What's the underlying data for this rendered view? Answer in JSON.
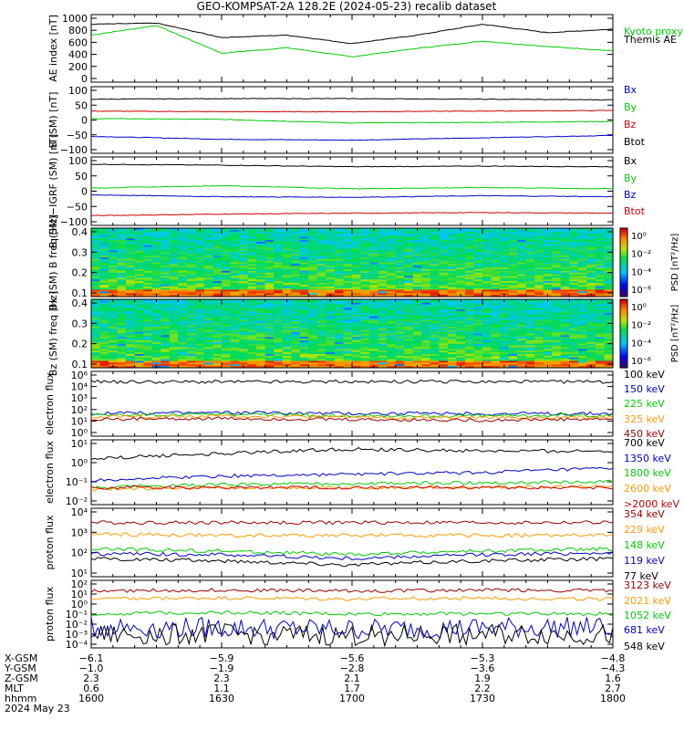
{
  "title": "GEO-KOMPSAT-2A 128.2E (2024-05-23) recalib dataset",
  "colors": {
    "black": "#000000",
    "red": "#cc0000",
    "green": "#00cc00",
    "blue": "#0000cc",
    "orange": "#ff9900",
    "darkred": "#990000"
  },
  "chart_data": [
    {
      "type": "line",
      "ylabel": "AE index [nT]",
      "ylim": [
        0,
        1000
      ],
      "yticks": [
        "1000",
        "800",
        "600",
        "400",
        "200",
        "0"
      ],
      "series": [
        {
          "name": "Kyoto proxy AE",
          "color": "#00cc00",
          "x": [
            "16:00",
            "16:15",
            "16:30",
            "16:45",
            "17:00",
            "17:15",
            "17:30",
            "17:45",
            "18:00"
          ],
          "values": [
            720,
            880,
            420,
            510,
            360,
            500,
            620,
            530,
            460
          ]
        },
        {
          "name": "Themis AE",
          "color": "#000000",
          "x": [
            "16:00",
            "16:15",
            "16:30",
            "16:45",
            "17:00",
            "17:15",
            "17:30",
            "17:45",
            "18:00"
          ],
          "values": [
            900,
            920,
            680,
            720,
            580,
            720,
            900,
            760,
            820
          ]
        }
      ]
    },
    {
      "type": "line",
      "ylabel": "B (SM) [nT]",
      "ylim": [
        -100,
        100
      ],
      "yticks": [
        "100",
        "50",
        "0",
        "−50",
        "−100"
      ],
      "series": [
        {
          "name": "Bx",
          "color": "#0000cc",
          "x": [
            "16:00",
            "16:30",
            "17:00",
            "17:30",
            "18:00"
          ],
          "values": [
            -55,
            -65,
            -68,
            -60,
            -52
          ]
        },
        {
          "name": "By",
          "color": "#00cc00",
          "x": [
            "16:00",
            "16:30",
            "17:00",
            "17:30",
            "18:00"
          ],
          "values": [
            5,
            2,
            -10,
            -8,
            -5
          ]
        },
        {
          "name": "Bz",
          "color": "#cc0000",
          "x": [
            "16:00",
            "16:30",
            "17:00",
            "17:30",
            "18:00"
          ],
          "values": [
            30,
            28,
            28,
            30,
            32
          ]
        },
        {
          "name": "Btot",
          "color": "#000000",
          "x": [
            "16:00",
            "16:30",
            "17:00",
            "17:30",
            "18:00"
          ],
          "values": [
            70,
            72,
            72,
            70,
            68
          ]
        }
      ]
    },
    {
      "type": "line",
      "ylabel": "B (SM)−IGRF (SM) [nT]",
      "ylim": [
        -100,
        100
      ],
      "yticks": [
        "100",
        "50",
        "0",
        "−50",
        "−100"
      ],
      "series": [
        {
          "name": "Bx",
          "color": "#000000",
          "x": [
            "16:00",
            "16:30",
            "17:00",
            "17:30",
            "18:00"
          ],
          "values": [
            88,
            85,
            80,
            82,
            80
          ]
        },
        {
          "name": "By",
          "color": "#00cc00",
          "x": [
            "16:00",
            "16:30",
            "17:00",
            "17:30",
            "18:00"
          ],
          "values": [
            10,
            18,
            8,
            12,
            8
          ]
        },
        {
          "name": "Bz",
          "color": "#0000cc",
          "x": [
            "16:00",
            "16:30",
            "17:00",
            "17:30",
            "18:00"
          ],
          "values": [
            -12,
            -18,
            -20,
            -15,
            -18
          ]
        },
        {
          "name": "Btot",
          "color": "#cc0000",
          "x": [
            "16:00",
            "16:30",
            "17:00",
            "17:30",
            "18:00"
          ],
          "values": [
            -80,
            -75,
            -72,
            -70,
            -72
          ]
        }
      ]
    },
    {
      "type": "heatmap",
      "ylabel": "Bx (SM) B freq [Hz]",
      "yticks": [
        "0.4",
        "0.3",
        "0.2",
        "0.1"
      ],
      "colorbar_label": "PSD [nT²/Hz]",
      "colorbar_ticks": [
        "10⁰",
        "10⁻²",
        "10⁻⁴",
        "10⁻⁶"
      ]
    },
    {
      "type": "heatmap",
      "ylabel": "Bz (SM) freq [Hz]",
      "yticks": [
        "0.4",
        "0.3",
        "0.2",
        "0.1"
      ],
      "colorbar_label": "PSD [nT²/Hz]",
      "colorbar_ticks": [
        "10⁰",
        "10⁻²",
        "10⁻⁴",
        "10⁻⁶"
      ]
    },
    {
      "type": "line",
      "ylabel": "electron flux",
      "scale": "log",
      "yticks": [
        "10⁶",
        "10⁴",
        "10³",
        "10²",
        "10¹",
        "10⁰"
      ],
      "series": [
        {
          "name": "100 keV",
          "color": "#000000",
          "values": [
            200000.0,
            200000.0,
            200000.0,
            200000.0,
            200000.0
          ]
        },
        {
          "name": "150 keV",
          "color": "#0000cc",
          "values": [
            100,
            120,
            100,
            90,
            100
          ]
        },
        {
          "name": "225 keV",
          "color": "#00cc00",
          "values": [
            70,
            80,
            60,
            55,
            65
          ]
        },
        {
          "name": "325 keV",
          "color": "#ff9900",
          "values": [
            45,
            50,
            40,
            35,
            40
          ]
        },
        {
          "name": "450 keV",
          "color": "#990000",
          "values": [
            25,
            30,
            22,
            20,
            25
          ]
        }
      ]
    },
    {
      "type": "line",
      "ylabel": "electron flux",
      "scale": "log",
      "yticks": [
        "10¹",
        "10⁰",
        "10⁻¹",
        "10⁻²"
      ],
      "series": [
        {
          "name": "700 keV",
          "color": "#000000",
          "values": [
            1.5,
            3,
            5,
            4,
            4
          ]
        },
        {
          "name": "1350 keV",
          "color": "#0000cc",
          "values": [
            0.12,
            0.2,
            0.25,
            0.3,
            0.5
          ]
        },
        {
          "name": "1800 keV",
          "color": "#00cc00",
          "values": [
            0.05,
            0.07,
            0.08,
            0.09,
            0.1
          ]
        },
        {
          "name": "2600 keV",
          "color": "#ff9900",
          "values": [
            0.04,
            0.05,
            0.05,
            0.05,
            0.06
          ]
        },
        {
          "name": ">2000 keV",
          "color": "#cc0000",
          "values": [
            0.05,
            0.05,
            0.05,
            0.05,
            0.05
          ]
        }
      ]
    },
    {
      "type": "line",
      "ylabel": "proton flux",
      "scale": "log",
      "yticks": [
        "10⁴",
        "10³",
        "10²",
        "10¹"
      ],
      "series": [
        {
          "name": "354 keV",
          "color": "#990000",
          "values": [
            3000,
            3000,
            3000,
            3000,
            3000
          ]
        },
        {
          "name": "229 keV",
          "color": "#ff9900",
          "values": [
            800,
            700,
            700,
            700,
            700
          ]
        },
        {
          "name": "148 keV",
          "color": "#00cc00",
          "values": [
            150,
            120,
            80,
            120,
            150
          ]
        },
        {
          "name": "119 keV",
          "color": "#0000cc",
          "values": [
            90,
            80,
            50,
            80,
            100
          ]
        },
        {
          "name": "77 keV",
          "color": "#000000",
          "values": [
            50,
            40,
            25,
            40,
            50
          ]
        }
      ]
    },
    {
      "type": "line",
      "ylabel": "proton flux",
      "scale": "log",
      "yticks": [
        "10²",
        "10¹",
        "10⁰",
        "10⁻¹",
        "10⁻²",
        "10⁻³",
        "10⁻⁴"
      ],
      "series": [
        {
          "name": "3123 keV",
          "color": "#990000",
          "values": [
            20,
            25,
            20,
            25,
            22
          ]
        },
        {
          "name": "2021 keV",
          "color": "#ff9900",
          "values": [
            3,
            4,
            3,
            4,
            3
          ]
        },
        {
          "name": "1052 keV",
          "color": "#00cc00",
          "values": [
            0.1,
            0.15,
            0.1,
            0.12,
            0.1
          ]
        },
        {
          "name": "681 keV",
          "color": "#0000cc",
          "values": [
            0.005,
            0.004,
            0.003,
            0.004,
            0.005
          ]
        },
        {
          "name": "548 keV",
          "color": "#000000",
          "values": [
            0.0008,
            0.001,
            0.0007,
            0.001,
            0.0008
          ]
        }
      ]
    }
  ],
  "footer": {
    "row_labels": [
      "X-GSM",
      "Y-GSM",
      "Z-GSM",
      "MLT",
      "hhmm"
    ],
    "columns": [
      [
        "−6.1",
        "−1.0",
        "2.3",
        "0.6",
        "1600"
      ],
      [
        "−5.9",
        "−1.9",
        "2.3",
        "1.1",
        "1630"
      ],
      [
        "−5.6",
        "−2.8",
        "2.1",
        "1.7",
        "1700"
      ],
      [
        "−5.3",
        "−3.6",
        "1.9",
        "2.2",
        "1730"
      ],
      [
        "−4.8",
        "−4.3",
        "1.6",
        "2.7",
        "1800"
      ]
    ],
    "date": "2024 May 23"
  }
}
